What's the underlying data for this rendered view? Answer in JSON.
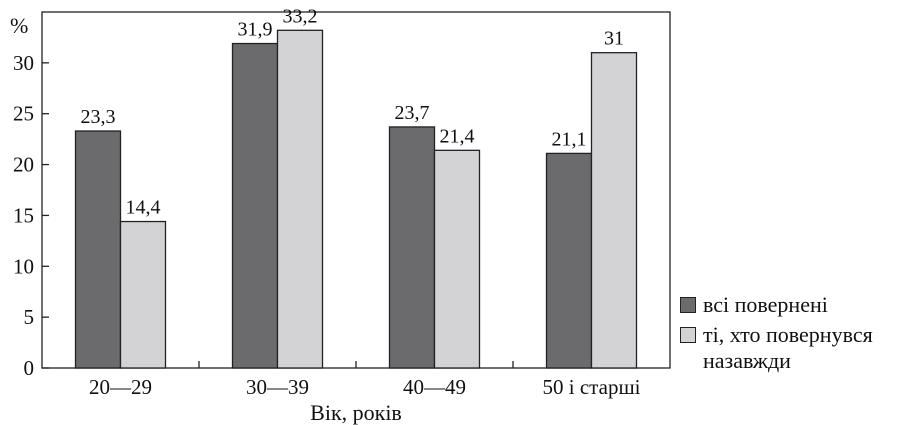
{
  "chart_data": {
    "type": "bar",
    "categories": [
      "20—29",
      "30—39",
      "40—49",
      "50 і старші"
    ],
    "series": [
      {
        "name": "всі повернені",
        "values": [
          23.3,
          31.9,
          23.7,
          21.1
        ],
        "labels": [
          "23,3",
          "31,9",
          "23,7",
          "21,1"
        ],
        "color": "#6b6b6e"
      },
      {
        "name": "ті, хто повернувся назавжди",
        "values": [
          14.4,
          33.2,
          21.4,
          31
        ],
        "labels": [
          "14,4",
          "33,2",
          "21,4",
          "31"
        ],
        "color": "#d3d3d5"
      }
    ],
    "ylabel": "%",
    "xlabel": "Вік, років",
    "ylim": [
      0,
      35
    ],
    "yticks": [
      0,
      5,
      10,
      15,
      20,
      25,
      30
    ],
    "grid": false,
    "legend_position": "bottom-right, outside plot"
  }
}
